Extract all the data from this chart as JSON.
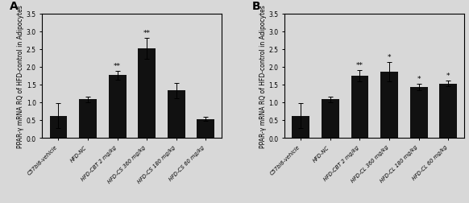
{
  "panel_A": {
    "label": "A",
    "categories": [
      "C57bl6-vehicle",
      "HFD-NC",
      "HFD-CBT 2 mg/kg",
      "HFD-CS 360 mg/kg",
      "HFD-CS 180 mg/kg",
      "HFD-CS 60 mg/kg"
    ],
    "values": [
      0.62,
      1.08,
      1.76,
      2.52,
      1.33,
      0.53
    ],
    "errors": [
      0.35,
      0.07,
      0.12,
      0.3,
      0.22,
      0.05
    ],
    "significance": [
      "",
      "",
      "**",
      "**",
      "",
      ""
    ],
    "ylabel": "PPAR-γ mRNA RQ of HFD-control in Adipocytes",
    "ylim": [
      0,
      3.5
    ],
    "yticks": [
      0.0,
      0.5,
      1.0,
      1.5,
      2.0,
      2.5,
      3.0,
      3.5
    ]
  },
  "panel_B": {
    "label": "B",
    "categories": [
      "C57bl6-vehicle",
      "HFD-NC",
      "HFD-CBT 2 mg/kg",
      "HFD-CL 360 mg/kg",
      "HFD-CL 180 mg/kg",
      "HFD-CL 60 mg/kg"
    ],
    "values": [
      0.62,
      1.08,
      1.74,
      1.86,
      1.44,
      1.53
    ],
    "errors": [
      0.35,
      0.07,
      0.16,
      0.28,
      0.09,
      0.08
    ],
    "significance": [
      "",
      "",
      "**",
      "*",
      "*",
      "*"
    ],
    "ylabel": "PPAR-γ mRNA RQ of HFD-control in Adipocytes",
    "ylim": [
      0,
      3.5
    ],
    "yticks": [
      0.0,
      0.5,
      1.0,
      1.5,
      2.0,
      2.5,
      3.0,
      3.5
    ]
  },
  "bar_color": "#111111",
  "bar_width": 0.6,
  "error_capsize": 2,
  "tick_label_fontsize": 4.8,
  "ylabel_fontsize": 5.5,
  "ytick_fontsize": 5.5,
  "sig_fontsize": 6.5,
  "panel_label_fontsize": 10,
  "background_color": "#d8d8d8",
  "plot_background_color": "#d8d8d8"
}
